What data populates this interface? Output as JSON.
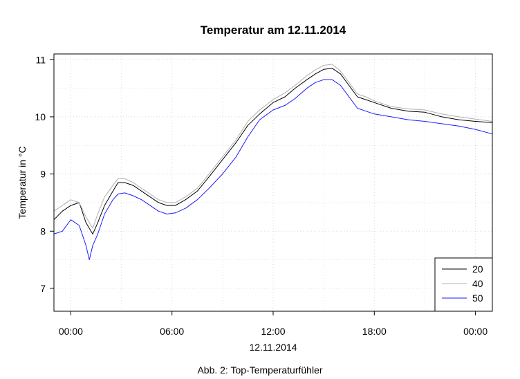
{
  "caption": "Abb. 2: Top-Temperaturfühler",
  "chart_data": {
    "type": "line",
    "title": "Temperatur am 12.11.2014",
    "xlabel": "12.11.2014",
    "ylabel": "Temperatur in °C",
    "x_unit": "hours (tick 00:00 = 0)",
    "xlim": [
      -1.0,
      25.0
    ],
    "ylim": [
      6.6,
      11.1
    ],
    "x_ticks": [
      0,
      6,
      12,
      18,
      24
    ],
    "x_tick_labels": [
      "00:00",
      "06:00",
      "12:00",
      "18:00",
      "00:00"
    ],
    "y_ticks": [
      7,
      8,
      9,
      10,
      11
    ],
    "y_tick_labels": [
      "7",
      "8",
      "9",
      "10",
      "11"
    ],
    "grid": true,
    "legend_position": "bottom-right",
    "series": [
      {
        "name": "20",
        "color": "#000000",
        "x": [
          -1.0,
          -0.5,
          0,
          0.5,
          0.9,
          1.3,
          1.6,
          2.0,
          2.5,
          2.8,
          3.2,
          3.7,
          4.2,
          4.7,
          5.2,
          5.7,
          6.2,
          6.8,
          7.5,
          8.2,
          9.0,
          9.8,
          10.5,
          11.2,
          12.0,
          12.7,
          13.3,
          14.0,
          14.5,
          15.0,
          15.5,
          16.0,
          16.5,
          17.0,
          17.5,
          18.0,
          19.0,
          20.0,
          21.0,
          22.0,
          23.0,
          24.0,
          25.0
        ],
        "values": [
          8.2,
          8.35,
          8.45,
          8.5,
          8.15,
          7.95,
          8.15,
          8.45,
          8.7,
          8.85,
          8.85,
          8.8,
          8.7,
          8.6,
          8.5,
          8.45,
          8.45,
          8.55,
          8.7,
          8.95,
          9.25,
          9.55,
          9.85,
          10.05,
          10.25,
          10.35,
          10.5,
          10.65,
          10.75,
          10.83,
          10.85,
          10.75,
          10.55,
          10.35,
          10.3,
          10.25,
          10.15,
          10.1,
          10.08,
          10.0,
          9.95,
          9.92,
          9.9
        ]
      },
      {
        "name": "40",
        "color": "#b0b0b0",
        "x": [
          -1.0,
          -0.5,
          0,
          0.5,
          0.9,
          1.3,
          1.6,
          2.0,
          2.5,
          2.8,
          3.2,
          3.7,
          4.2,
          4.7,
          5.2,
          5.7,
          6.2,
          6.8,
          7.5,
          8.2,
          9.0,
          9.8,
          10.5,
          11.2,
          12.0,
          12.7,
          13.3,
          14.0,
          14.5,
          15.0,
          15.5,
          16.0,
          16.5,
          17.0,
          17.5,
          18.0,
          19.0,
          20.0,
          21.0,
          22.0,
          23.0,
          24.0,
          25.0
        ],
        "values": [
          8.35,
          8.45,
          8.55,
          8.5,
          8.25,
          8.05,
          8.3,
          8.6,
          8.8,
          8.92,
          8.92,
          8.85,
          8.75,
          8.65,
          8.55,
          8.5,
          8.5,
          8.6,
          8.75,
          9.0,
          9.3,
          9.6,
          9.92,
          10.12,
          10.3,
          10.42,
          10.55,
          10.72,
          10.82,
          10.9,
          10.92,
          10.8,
          10.6,
          10.4,
          10.35,
          10.28,
          10.18,
          10.14,
          10.12,
          10.05,
          10.0,
          9.96,
          9.92
        ]
      },
      {
        "name": "50",
        "color": "#1a1aff",
        "x": [
          -1.0,
          -0.5,
          0,
          0.5,
          0.9,
          1.1,
          1.3,
          1.6,
          2.0,
          2.5,
          2.8,
          3.2,
          3.7,
          4.2,
          4.7,
          5.2,
          5.7,
          6.2,
          6.8,
          7.5,
          8.2,
          9.0,
          9.8,
          10.5,
          11.2,
          12.0,
          12.7,
          13.3,
          14.0,
          14.5,
          15.0,
          15.5,
          16.0,
          16.5,
          17.0,
          17.5,
          18.0,
          19.0,
          20.0,
          21.0,
          22.0,
          23.0,
          24.0,
          25.0
        ],
        "values": [
          7.95,
          8.0,
          8.2,
          8.1,
          7.75,
          7.5,
          7.75,
          7.95,
          8.3,
          8.55,
          8.65,
          8.67,
          8.62,
          8.55,
          8.45,
          8.35,
          8.3,
          8.32,
          8.4,
          8.55,
          8.75,
          9.0,
          9.3,
          9.65,
          9.95,
          10.12,
          10.2,
          10.32,
          10.5,
          10.6,
          10.65,
          10.65,
          10.55,
          10.35,
          10.15,
          10.1,
          10.05,
          10.0,
          9.95,
          9.92,
          9.88,
          9.84,
          9.78,
          9.7
        ]
      }
    ]
  }
}
